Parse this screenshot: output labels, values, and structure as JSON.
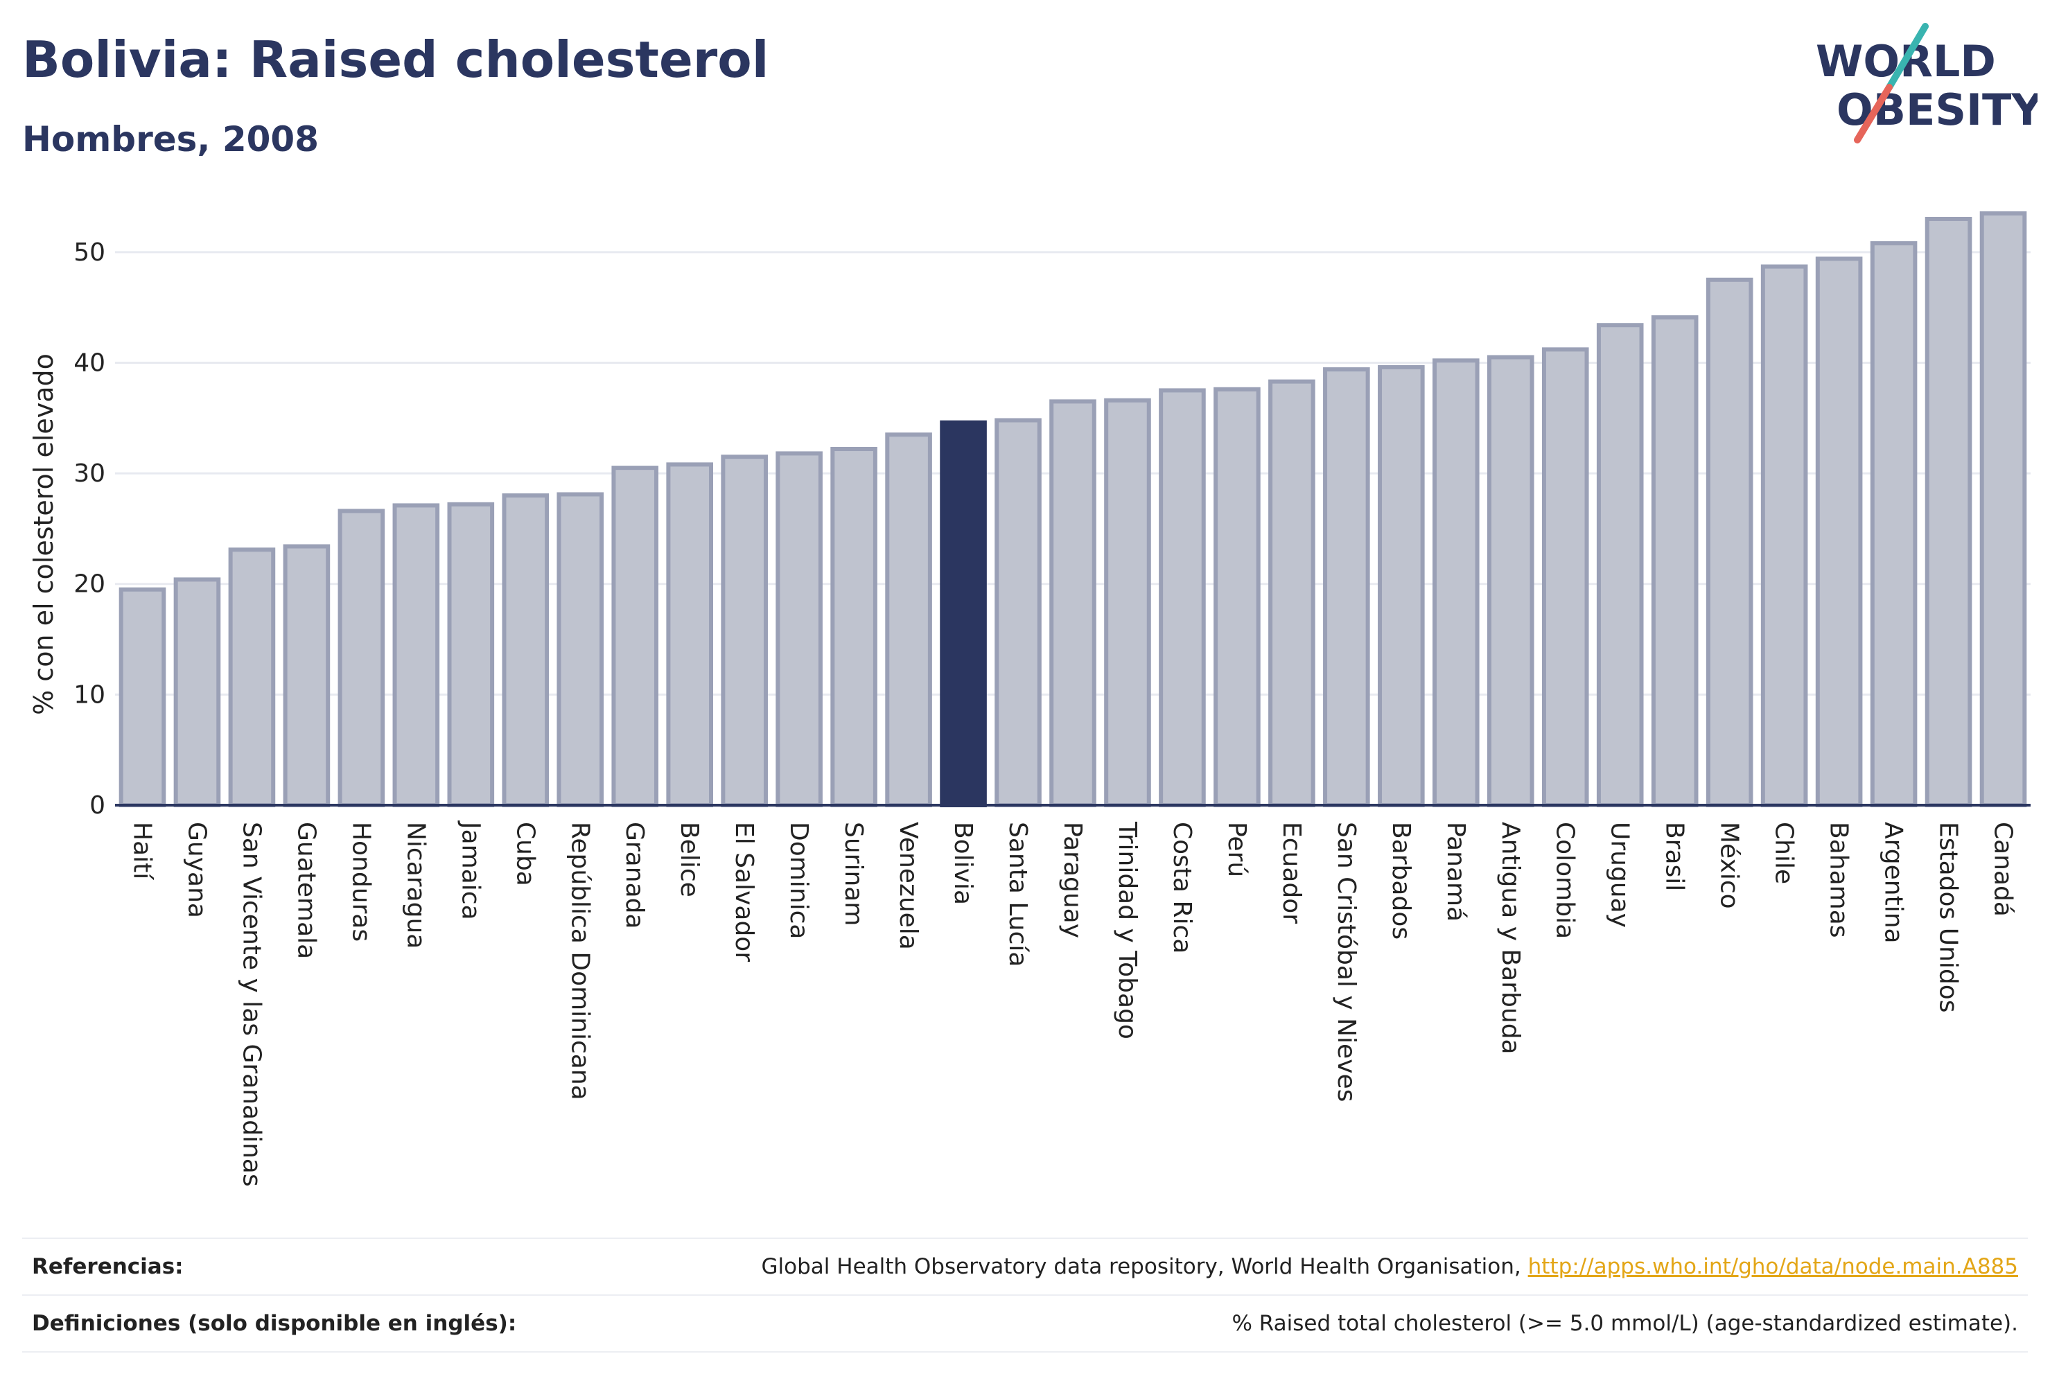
{
  "header": {
    "title": "Bolivia: Raised cholesterol",
    "subtitle": "Hombres, 2008"
  },
  "logo": {
    "line1": "WORLD",
    "line2": "OBESITY",
    "text_color": "#2b3660",
    "slash_colors": [
      "#39b4b0",
      "#e6655a"
    ]
  },
  "chart_data": {
    "type": "bar",
    "ylabel": "% con el colesterol elevado",
    "ylim": [
      0,
      54
    ],
    "yticks": [
      0,
      10,
      20,
      30,
      40,
      50
    ],
    "grid": true,
    "highlight": "Bolivia",
    "colors": {
      "bar_fill": "#bfc3cf",
      "bar_stroke": "#9aa0b6",
      "highlight_fill": "#2b3660",
      "axis": "#2b3660",
      "grid": "#e8eaf0"
    },
    "categories": [
      "Haití",
      "Guyana",
      "San Vicente y las Granadinas",
      "Guatemala",
      "Honduras",
      "Nicaragua",
      "Jamaica",
      "Cuba",
      "República Dominicana",
      "Granada",
      "Belice",
      "El Salvador",
      "Dominica",
      "Surinam",
      "Venezuela",
      "Bolivia",
      "Santa Lucía",
      "Paraguay",
      "Trinidad y Tobago",
      "Costa Rica",
      "Perú",
      "Ecuador",
      "San Cristóbal y Nieves",
      "Barbados",
      "Panamá",
      "Antigua y Barbuda",
      "Colombia",
      "Uruguay",
      "Brasil",
      "México",
      "Chile",
      "Bahamas",
      "Argentina",
      "Estados Unidos",
      "Canadá"
    ],
    "values": [
      19.5,
      20.4,
      23.1,
      23.4,
      26.6,
      27.1,
      27.2,
      28.0,
      28.1,
      30.5,
      30.8,
      31.5,
      31.8,
      32.2,
      33.5,
      34.6,
      34.8,
      36.5,
      36.6,
      37.5,
      37.6,
      38.3,
      39.4,
      39.6,
      40.2,
      40.5,
      41.2,
      43.4,
      44.1,
      47.5,
      48.7,
      49.4,
      50.8,
      53.0,
      53.5
    ]
  },
  "footer": {
    "references_label": "Referencias:",
    "references_text": "Global Health Observatory data repository, World Health Organisation, ",
    "references_link": "http://apps.who.int/gho/data/node.main.A885",
    "definitions_label": "Definiciones (solo disponible en inglés):",
    "definitions_text": "% Raised total cholesterol (>= 5.0 mmol/L) (age-standardized estimate)."
  }
}
